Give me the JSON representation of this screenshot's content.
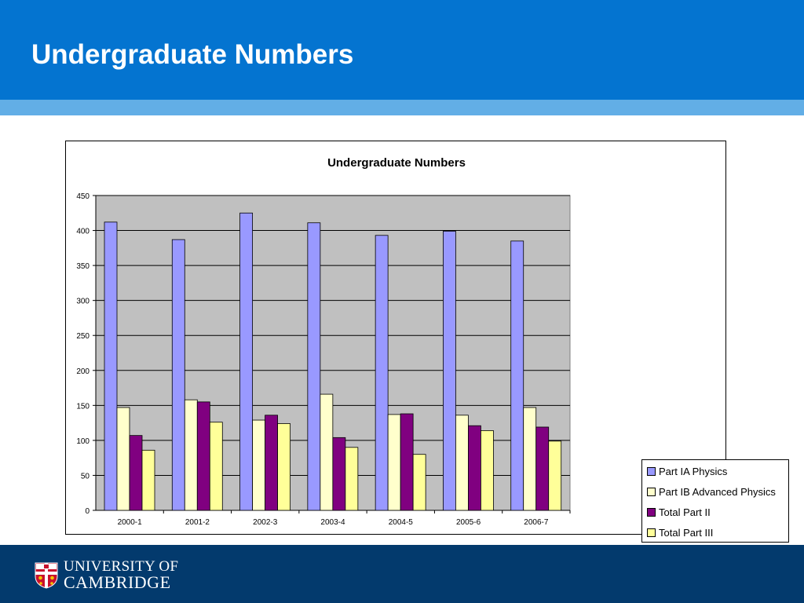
{
  "slide": {
    "title": "Undergraduate Numbers"
  },
  "footer": {
    "university_line1": "UNIVERSITY OF",
    "university_line2": "CAMBRIDGE"
  },
  "chart_data": {
    "type": "bar",
    "title": "Undergraduate Numbers",
    "xlabel": "",
    "ylabel": "",
    "categories": [
      "2000-1",
      "2001-2",
      "2002-3",
      "2003-4",
      "2004-5",
      "2005-6",
      "2006-7"
    ],
    "series": [
      {
        "name": "Part IA Physics",
        "color": "#9999ff",
        "values": [
          412,
          387,
          425,
          411,
          393,
          399,
          385
        ]
      },
      {
        "name": "Part IB Advanced Physics",
        "color": "#ffffcc",
        "values": [
          147,
          158,
          129,
          166,
          137,
          136,
          147
        ]
      },
      {
        "name": "Total Part II",
        "color": "#800080",
        "values": [
          107,
          155,
          136,
          104,
          138,
          121,
          119
        ]
      },
      {
        "name": "Total Part III",
        "color": "#ffff99",
        "values": [
          86,
          126,
          124,
          90,
          80,
          114,
          99
        ]
      }
    ],
    "ylim": [
      0,
      450
    ],
    "yticks": [
      "0",
      "50",
      "100",
      "150",
      "200",
      "250",
      "300",
      "350",
      "400",
      "450"
    ],
    "grid": true,
    "plot_background": "#c0c0c0",
    "legend_position": "right"
  }
}
